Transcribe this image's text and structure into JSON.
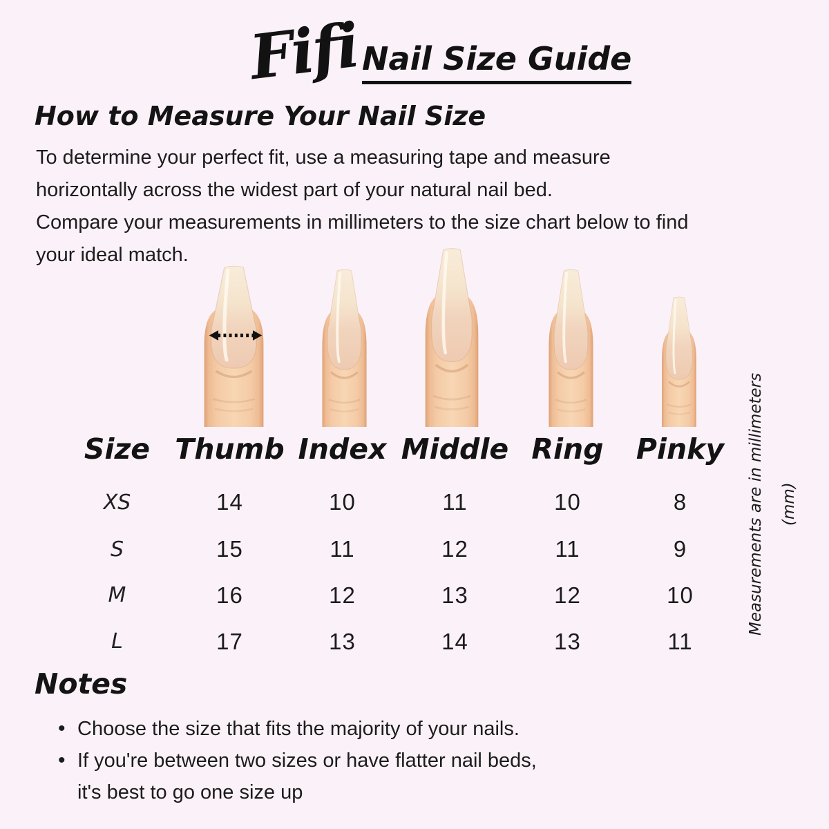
{
  "colors": {
    "background": "#fbf2f9",
    "text": "#1a1a1a",
    "skin_edge": "#dfa076",
    "skin_mid": "#f4cba6",
    "skin_center": "#f8d6b4",
    "nail_tip": "#f8ecd9",
    "nail_upper": "#f5e4cd",
    "nail_bed": "#eecab1",
    "arrow": "#111111"
  },
  "header": {
    "brand": "Fifi",
    "title": "Nail Size Guide"
  },
  "how_to": {
    "heading": "How to Measure Your Nail Size",
    "lines": [
      "To determine your perfect fit, use a measuring tape and measure",
      "horizontally across the widest part of your natural nail bed.",
      "Compare your measurements in millimeters to the size chart below to find",
      "your ideal match."
    ]
  },
  "size_chart": {
    "columns": [
      "Size",
      "Thumb",
      "Index",
      "Middle",
      "Ring",
      "Pinky"
    ],
    "rows": [
      {
        "size": "XS",
        "values": [
          14,
          10,
          11,
          10,
          8
        ]
      },
      {
        "size": "S",
        "values": [
          15,
          11,
          12,
          11,
          9
        ]
      },
      {
        "size": "M",
        "values": [
          16,
          12,
          13,
          12,
          10
        ]
      },
      {
        "size": "L",
        "values": [
          17,
          13,
          14,
          13,
          11
        ]
      }
    ],
    "unit_note": "Measurements are in millimeters (mm)"
  },
  "notes": {
    "heading": "Notes",
    "bullets": [
      {
        "lines": [
          "Choose the size that fits the majority of your nails."
        ]
      },
      {
        "lines": [
          "If you're between two sizes or have flatter nail beds,",
          "it's best to go one size up"
        ]
      }
    ]
  }
}
